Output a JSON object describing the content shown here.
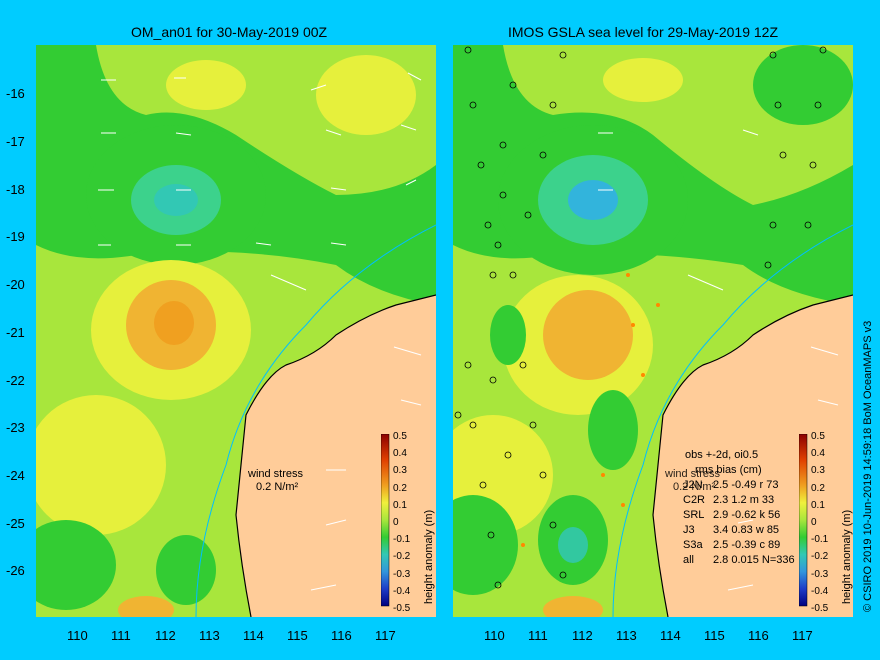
{
  "left": {
    "title": "OM_an01 for 30-May-2019 00Z",
    "wind_label": "wind stress",
    "wind_value": "0.2 N/m²"
  },
  "right": {
    "title": "IMOS GSLA sea level  for 29-May-2019 12Z",
    "obs_header": "obs +-2d, oi0.5",
    "stats_header": "rms   bias (cm)",
    "wind_label": "wind stress",
    "wind_value": "0.2 N/m²",
    "stats": [
      {
        "sat": "C2R",
        "values": "2.3  1.2  m 33"
      },
      {
        "sat": "SRL",
        "values": "2.9 -0.62 k 56"
      },
      {
        "sat": "J3",
        "values": "3.4  0.83 w 85"
      },
      {
        "sat": "S3a",
        "values": "2.5 -0.39 c 89"
      },
      {
        "sat": "all",
        "values": "2.8  0.015 N=336"
      }
    ],
    "first_stat": {
      "sat": "J2N",
      "values": "2.5 -0.49 r 73"
    }
  },
  "colorbar": {
    "label": "height anomaly (m)",
    "ticks": [
      "0.5",
      "0.4",
      "0.3",
      "0.2",
      "0.1",
      "0",
      "-0.1",
      "-0.2",
      "-0.3",
      "-0.4",
      "-0.5"
    ]
  },
  "axes": {
    "lat_ticks": [
      "-16",
      "-17",
      "-18",
      "-19",
      "-20",
      "-21",
      "-22",
      "-23",
      "-24",
      "-25",
      "-26"
    ],
    "lon_ticks": [
      "110",
      "111",
      "112",
      "113",
      "114",
      "115",
      "116",
      "117"
    ]
  },
  "credit": "© CSIRO 2019   10-Jun-2019 14:59:18 BoM OceanMAPS v3",
  "colors": {
    "background": "#00ccff",
    "land": "#ffcc99",
    "green": "#a8e63c",
    "dark_green": "#33cc33",
    "yellow": "#e6f03c",
    "orange": "#f0b432",
    "teal": "#32c8a0"
  }
}
